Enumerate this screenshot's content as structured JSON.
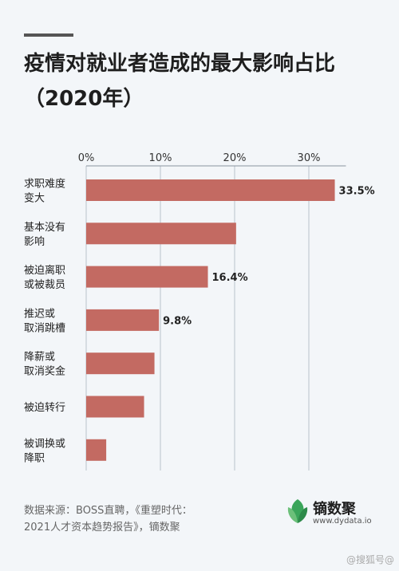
{
  "header": {
    "title": "疫情对就业者造成的最大影响占比（2020年）"
  },
  "chart_data": {
    "type": "bar",
    "orientation": "horizontal",
    "title": "疫情对就业者造成的最大影响占比（2020年）",
    "categories": [
      [
        "求职难度",
        "变大"
      ],
      [
        "基本没有",
        "影响"
      ],
      [
        "被迫离职",
        "或被裁员"
      ],
      [
        "推迟或",
        "取消跳槽"
      ],
      [
        "降薪或",
        "取消奖金"
      ],
      [
        "被迫转行"
      ],
      [
        "被调换或",
        "降职"
      ]
    ],
    "values": [
      33.5,
      20.2,
      16.4,
      9.8,
      9.2,
      7.8,
      2.7
    ],
    "data_labels": [
      "33.5%",
      "",
      "16.4%",
      "9.8%",
      "",
      "",
      ""
    ],
    "ticks": [
      "0%",
      "10%",
      "20%",
      "30%"
    ],
    "xlim": [
      0,
      35
    ],
    "bar_color": "#c36a62",
    "grid": true
  },
  "footer": {
    "source_line1": "数据来源：BOSS直聘，《重塑时代：",
    "source_line2": "2021人才资本趋势报告》，镝数聚",
    "brand_name": "镝数聚",
    "brand_url": "www.dydata.io",
    "brand_icon": "leaf-logo-icon",
    "brand_color": "#3aa55a"
  },
  "watermark": "@搜狐号@"
}
